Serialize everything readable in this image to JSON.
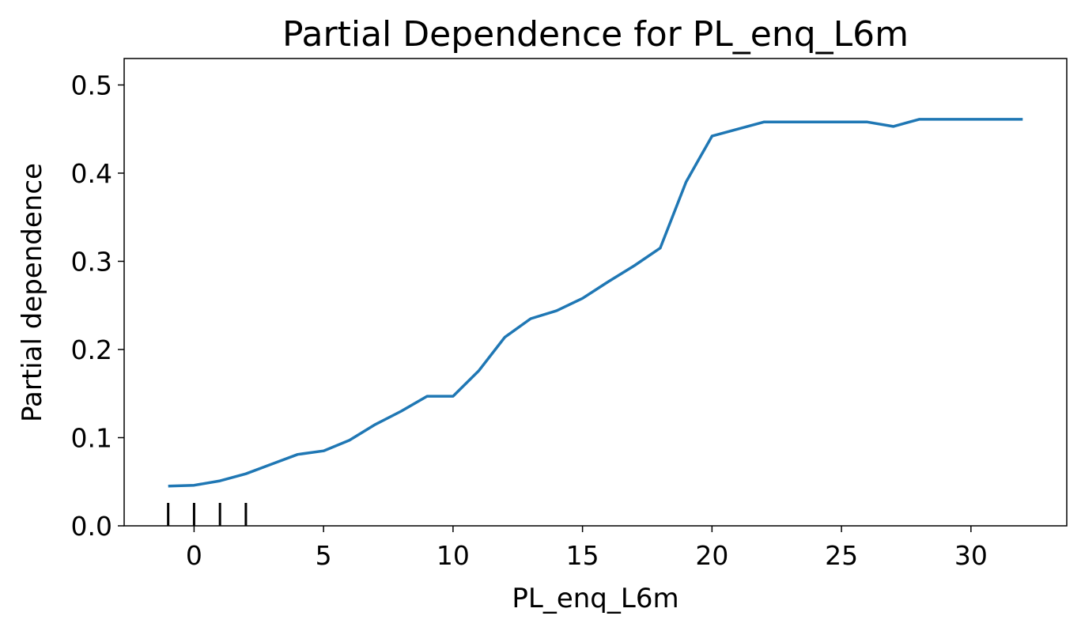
{
  "chart_data": {
    "type": "line",
    "title": "Partial Dependence for PL_enq_L6m",
    "xlabel": "PL_enq_L6m",
    "ylabel": "Partial dependence",
    "xlim": [
      -2.7,
      33.7
    ],
    "ylim": [
      0.0,
      0.53
    ],
    "xticks": [
      0,
      5,
      10,
      15,
      20,
      25,
      30
    ],
    "yticks": [
      0.0,
      0.1,
      0.2,
      0.3,
      0.4,
      0.5
    ],
    "xtick_labels": [
      "0",
      "5",
      "10",
      "15",
      "20",
      "25",
      "30"
    ],
    "ytick_labels": [
      "0.0",
      "0.1",
      "0.2",
      "0.3",
      "0.4",
      "0.5"
    ],
    "grid": false,
    "line_color": "#1f77b4",
    "series": [
      {
        "x": [
          -1,
          0,
          1,
          2,
          3,
          4,
          5,
          6,
          7,
          8,
          9,
          10,
          11,
          12,
          13,
          14,
          15,
          16,
          17,
          18,
          19,
          20,
          21,
          22,
          23,
          24,
          25,
          26,
          27,
          28,
          29,
          30,
          31,
          32
        ],
        "values": [
          0.045,
          0.046,
          0.051,
          0.059,
          0.07,
          0.081,
          0.085,
          0.097,
          0.115,
          0.13,
          0.147,
          0.147,
          0.176,
          0.214,
          0.235,
          0.244,
          0.258,
          0.277,
          0.295,
          0.315,
          0.39,
          0.442,
          0.45,
          0.458,
          0.458,
          0.458,
          0.458,
          0.458,
          0.453,
          0.461,
          0.461,
          0.461,
          0.461,
          0.461
        ]
      }
    ],
    "rug": [
      -1,
      0,
      1,
      2
    ]
  }
}
